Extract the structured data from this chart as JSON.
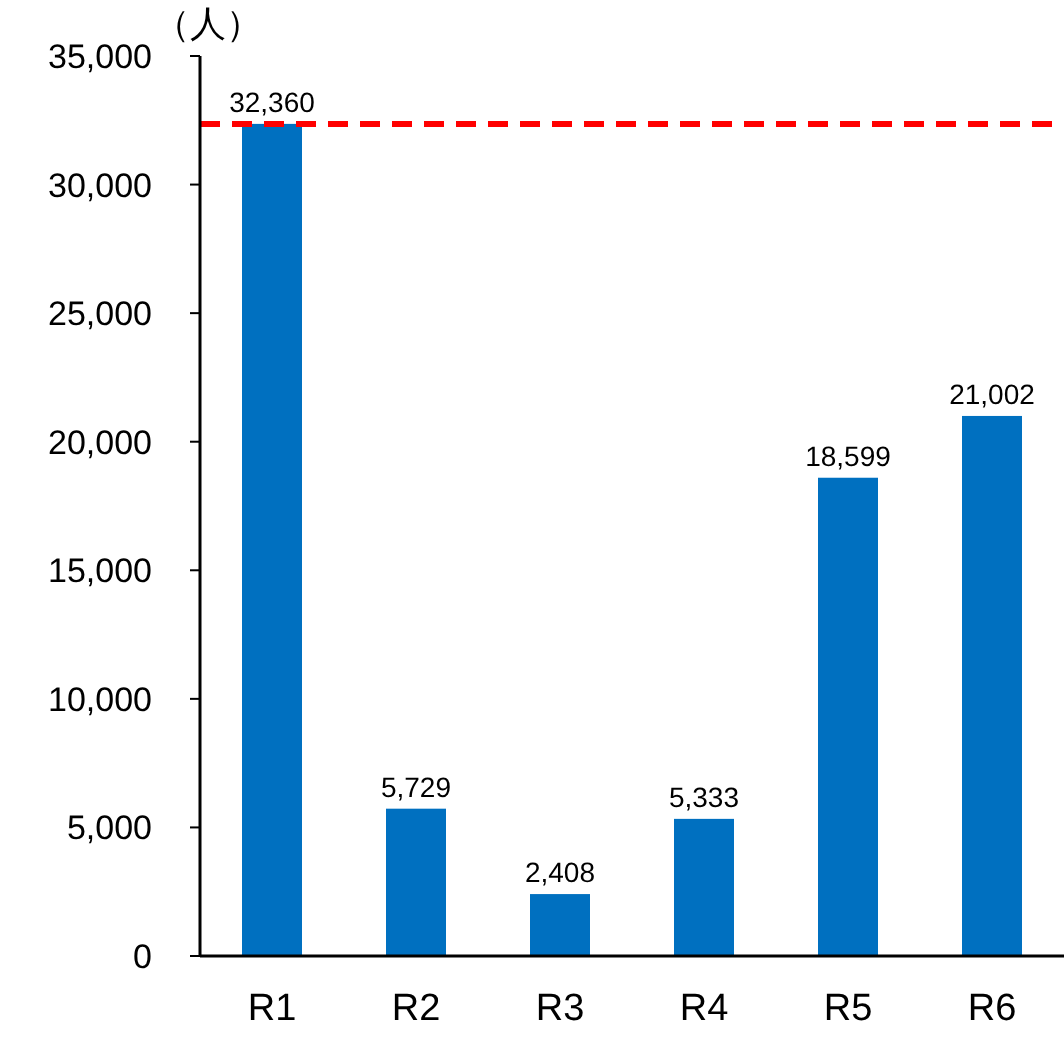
{
  "chart_data": {
    "type": "bar",
    "ylabel": "（人）",
    "categories": [
      "R1",
      "R2",
      "R3",
      "R4",
      "R5",
      "R6"
    ],
    "values": [
      32360,
      5729,
      2408,
      5333,
      18599,
      21002
    ],
    "value_labels": [
      "32,360",
      "5,729",
      "2,408",
      "5,333",
      "18,599",
      "21,002"
    ],
    "color": "#0070c0",
    "ylim": [
      0,
      35000
    ],
    "yticks": [
      0,
      {
        "value": 5000,
        "label": "5,000"
      },
      {
        "value": 10000,
        "label": "10,000"
      },
      {
        "value": 15000,
        "label": "15,000"
      },
      {
        "value": 20000,
        "label": "20,000"
      },
      {
        "value": 25000,
        "label": "25,000"
      },
      {
        "value": 30000,
        "label": "30,000"
      },
      {
        "value": 35000,
        "label": "35,000"
      }
    ],
    "ref_lines": [
      {
        "axis": "y",
        "value": 32360,
        "color": "#ff0000",
        "line_style": "dashed"
      }
    ]
  }
}
